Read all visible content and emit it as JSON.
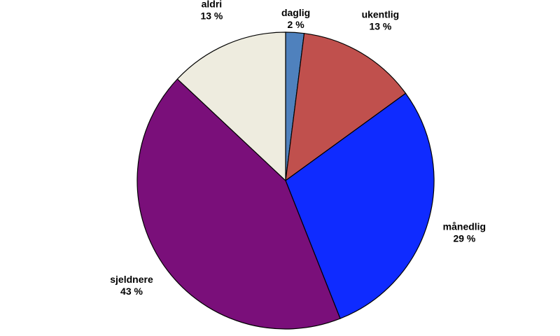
{
  "chart_data": {
    "type": "pie",
    "title": "",
    "slices": [
      {
        "label": "daglig",
        "value": 2,
        "display": "2 %",
        "color": "#4f81bd"
      },
      {
        "label": "ukentlig",
        "value": 13,
        "display": "13 %",
        "color": "#c0504d"
      },
      {
        "label": "månedlig",
        "value": 29,
        "display": "29 %",
        "color": "#0f2bff"
      },
      {
        "label": "sjeldnere",
        "value": 43,
        "display": "43 %",
        "color": "#7a0f7a"
      },
      {
        "label": "aldri",
        "value": 13,
        "display": "13 %",
        "color": "#eeecdf"
      }
    ],
    "start_angle_deg": 0,
    "direction": "clockwise",
    "legend": "none",
    "labels_outside": true
  }
}
